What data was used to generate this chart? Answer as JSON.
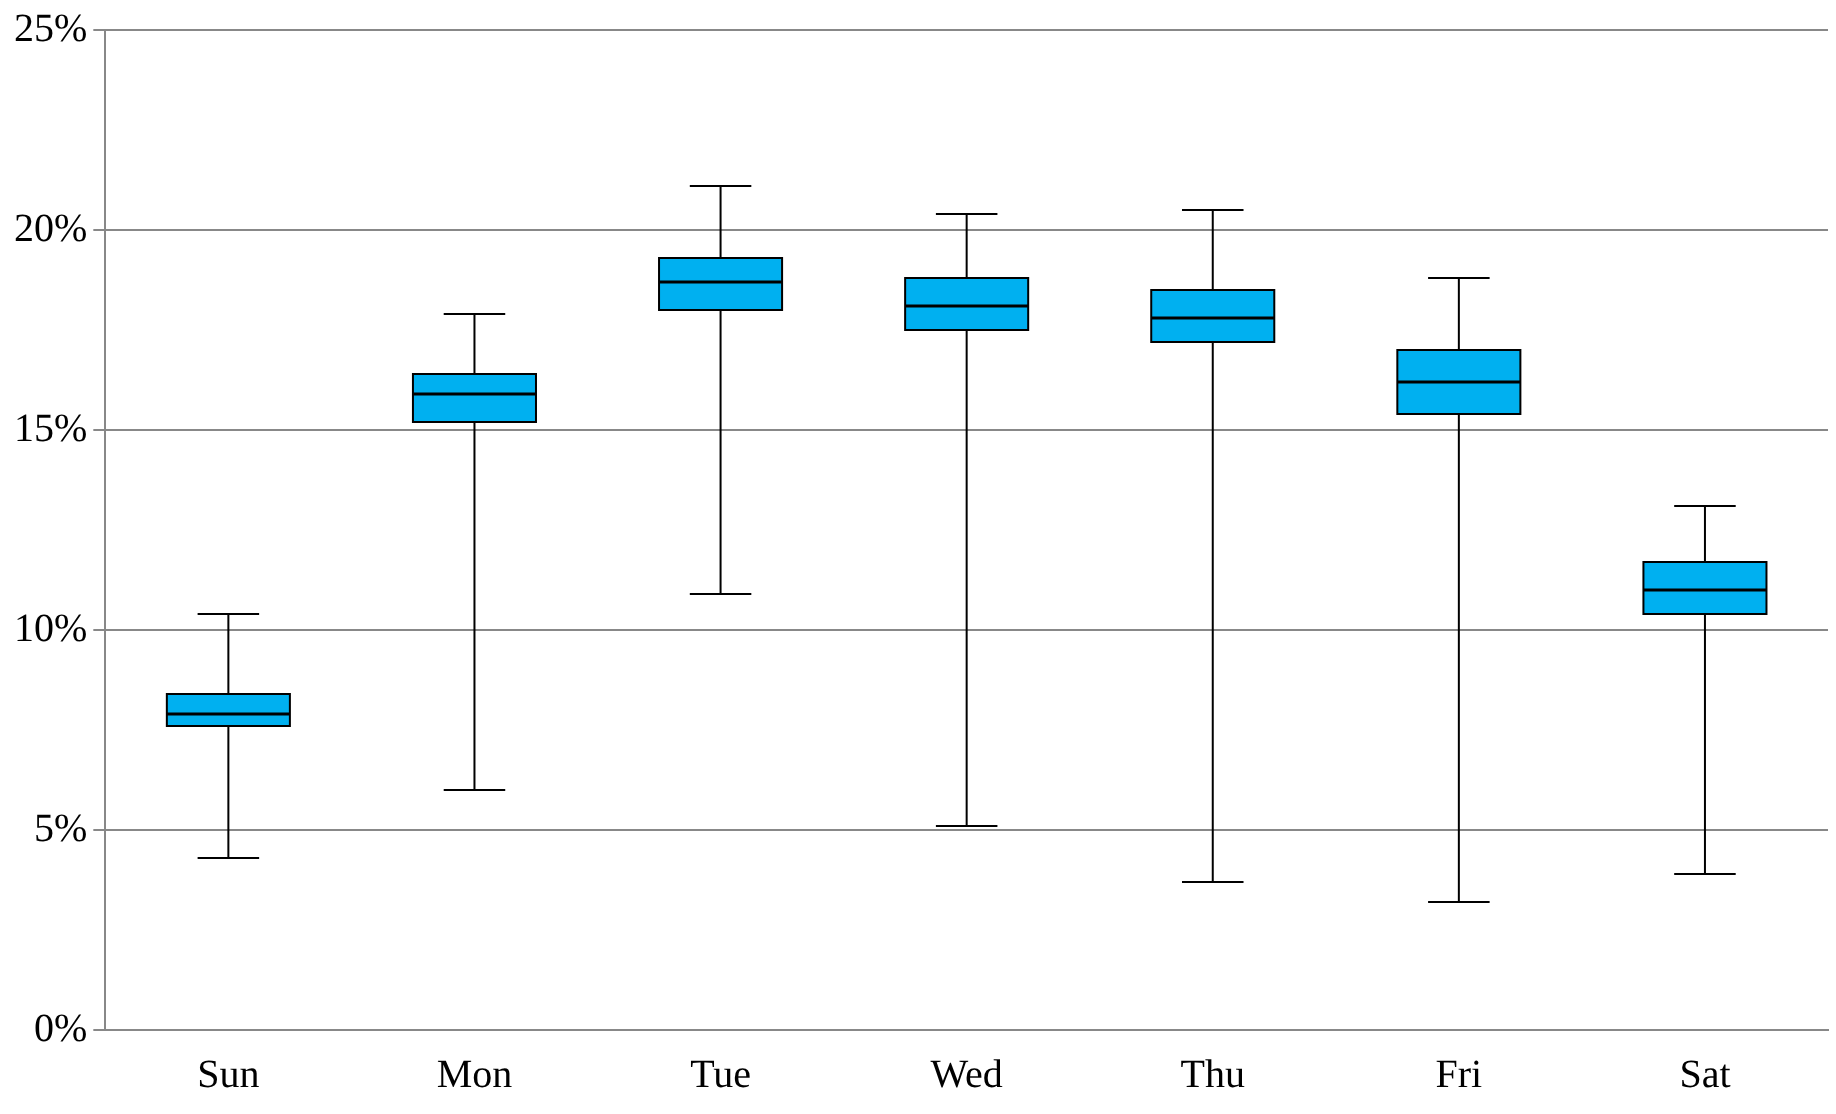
{
  "chart_data": {
    "type": "box",
    "categories": [
      "Sun",
      "Mon",
      "Tue",
      "Wed",
      "Thu",
      "Fri",
      "Sat"
    ],
    "boxes": [
      {
        "low": 4.3,
        "q1": 7.6,
        "median": 7.9,
        "q3": 8.4,
        "high": 10.4
      },
      {
        "low": 6.0,
        "q1": 15.2,
        "median": 15.9,
        "q3": 16.4,
        "high": 17.9
      },
      {
        "low": 10.9,
        "q1": 18.0,
        "median": 18.7,
        "q3": 19.3,
        "high": 21.1
      },
      {
        "low": 5.1,
        "q1": 17.5,
        "median": 18.1,
        "q3": 18.8,
        "high": 20.4
      },
      {
        "low": 3.7,
        "q1": 17.2,
        "median": 17.8,
        "q3": 18.5,
        "high": 20.5
      },
      {
        "low": 3.2,
        "q1": 15.4,
        "median": 16.2,
        "q3": 17.0,
        "high": 18.8
      },
      {
        "low": 3.9,
        "q1": 10.4,
        "median": 11.0,
        "q3": 11.7,
        "high": 13.1
      }
    ],
    "color": "#00b0f0",
    "ylim": [
      0,
      25
    ],
    "yticks": [
      {
        "value": 0,
        "label": "0%"
      },
      {
        "value": 5,
        "label": "5%"
      },
      {
        "value": 10,
        "label": "10%"
      },
      {
        "value": 15,
        "label": "15%"
      },
      {
        "value": 20,
        "label": "20%"
      },
      {
        "value": 25,
        "label": "25%"
      }
    ],
    "grid": "y",
    "legend": false
  }
}
